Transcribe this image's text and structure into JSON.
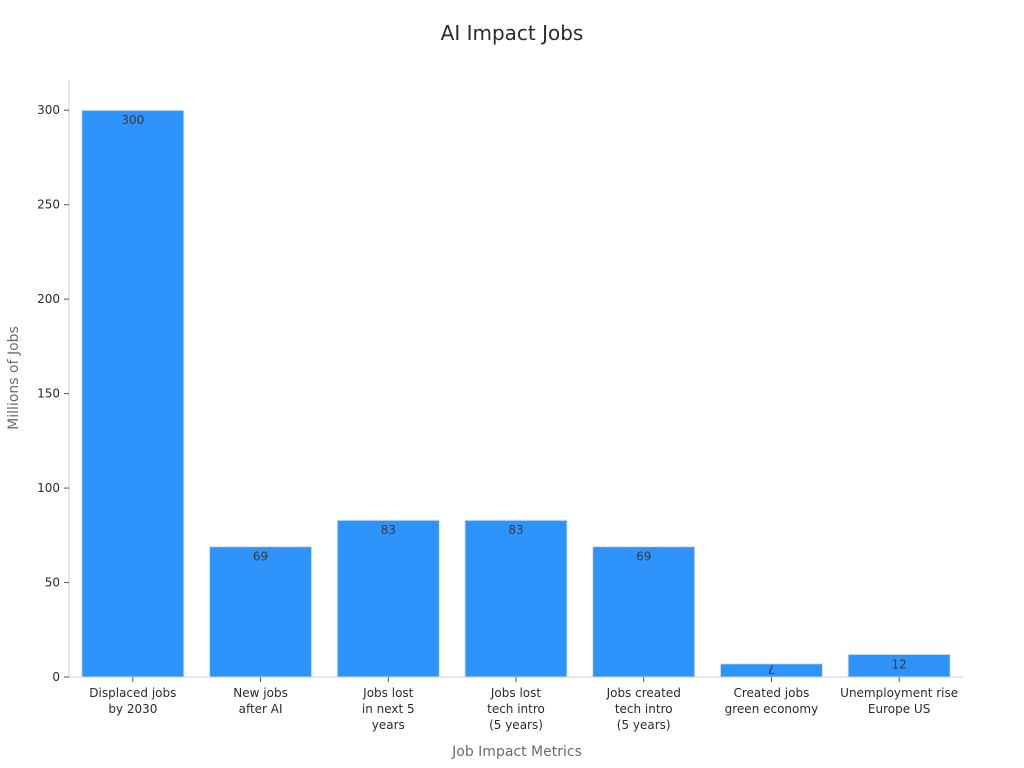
{
  "chart_data": {
    "type": "bar",
    "title": "AI Impact Jobs",
    "xlabel": "Job Impact Metrics",
    "ylabel": "Millions of Jobs",
    "categories": [
      [
        "Displaced jobs",
        "by 2030"
      ],
      [
        "New jobs",
        "after AI"
      ],
      [
        "Jobs lost",
        "in next 5",
        "years"
      ],
      [
        "Jobs lost",
        "tech intro",
        "(5 years)"
      ],
      [
        "Jobs created",
        "tech intro",
        "(5 years)"
      ],
      [
        "Created jobs",
        "green economy"
      ],
      [
        "Unemployment rise",
        "Europe US"
      ]
    ],
    "values": [
      300,
      69,
      83,
      83,
      69,
      7,
      12
    ],
    "ylim": [
      0,
      316
    ],
    "yticks": [
      0,
      50,
      100,
      150,
      200,
      250,
      300
    ],
    "grid": false,
    "legend": "none",
    "bar_color": "#2e93fa"
  }
}
